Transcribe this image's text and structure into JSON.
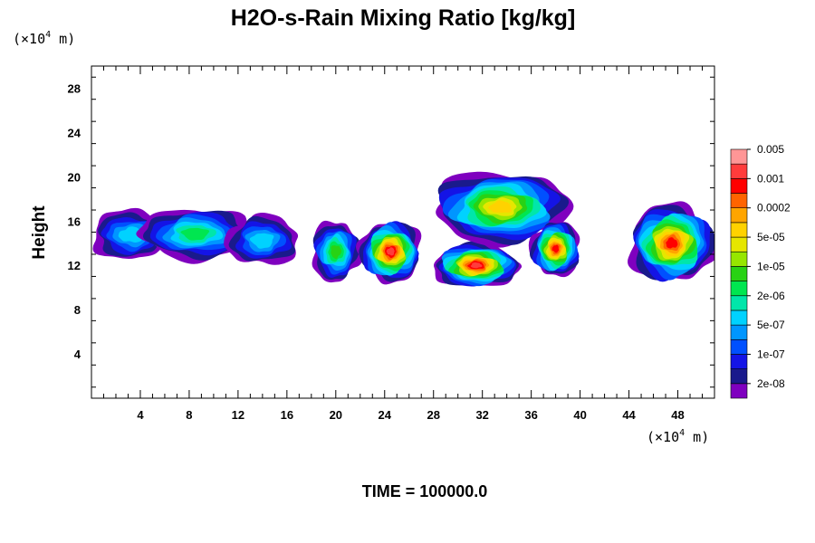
{
  "chart_data": {
    "type": "heatmap",
    "title": "H2O-s-Rain Mixing Ratio [kg/kg]",
    "ylabel": "Height",
    "xlabel": "",
    "x_unit_prefix": "(×10",
    "x_unit_exp": "4",
    "x_unit_suffix": " m)",
    "y_unit_prefix": "(×10",
    "y_unit_exp": "4",
    "y_unit_suffix": " m)",
    "xlim": [
      0,
      51
    ],
    "ylim": [
      0,
      30
    ],
    "x_ticks": [
      "4",
      "8",
      "12",
      "16",
      "20",
      "24",
      "28",
      "32",
      "36",
      "40",
      "44",
      "48"
    ],
    "y_ticks": [
      "4",
      "8",
      "12",
      "16",
      "20",
      "24",
      "28"
    ],
    "time_label": "TIME = 100000.0",
    "colorbar": {
      "colors": [
        "#7f00bf",
        "#1a1a8c",
        "#1414e6",
        "#0050ff",
        "#0096ff",
        "#00d2ff",
        "#00e6aa",
        "#00e650",
        "#28d214",
        "#96e600",
        "#e6e600",
        "#ffd200",
        "#ffa500",
        "#ff6400",
        "#ff0000",
        "#ff3c3c",
        "#ff9696"
      ],
      "labels": [
        "2e-08",
        "1e-07",
        "5e-07",
        "2e-06",
        "1e-05",
        "5e-05",
        "0.0002",
        "0.001",
        "0.005"
      ],
      "label_levels": [
        1,
        3,
        5,
        7,
        9,
        11,
        13,
        15,
        17
      ]
    },
    "cloud_regions": [
      {
        "x": [
          0,
          6.5
        ],
        "y": [
          12.5,
          17
        ],
        "max_level": 6
      },
      {
        "x": [
          4,
          13
        ],
        "y": [
          12.5,
          17.2
        ],
        "max_level": 8
      },
      {
        "x": [
          11,
          17
        ],
        "y": [
          12,
          16.5
        ],
        "max_level": 6
      },
      {
        "x": [
          18,
          22
        ],
        "y": [
          10.5,
          16
        ],
        "max_level": 9
      },
      {
        "x": [
          22,
          27
        ],
        "y": [
          10.5,
          16
        ],
        "max_level": 16
      },
      {
        "x": [
          28,
          35
        ],
        "y": [
          10,
          14
        ],
        "max_level": 16
      },
      {
        "x": [
          28,
          39
        ],
        "y": [
          14,
          20.5
        ],
        "max_level": 12
      },
      {
        "x": [
          36,
          40
        ],
        "y": [
          11,
          16
        ],
        "max_level": 15
      },
      {
        "x": [
          44,
          51
        ],
        "y": [
          10.5,
          17.5
        ],
        "max_level": 15
      }
    ]
  }
}
